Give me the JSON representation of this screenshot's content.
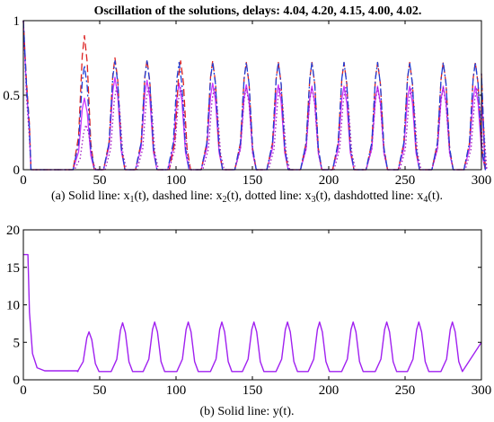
{
  "chart_data": [
    {
      "type": "line",
      "title": "Oscillation of the solutions, delays: 4.04, 4.20, 4.15, 4.00, 4.02.",
      "caption": {
        "prefix": "(a) Solid line: x",
        "sub1": "1",
        "mid1": "(t), dashed line: x",
        "sub2": "2",
        "mid2": "(t), dotted line: x",
        "sub3": "3",
        "mid3": "(t), dashdotted line: x",
        "sub4": "4",
        "suffix": "(t)."
      },
      "xlim": [
        0,
        300
      ],
      "ylim": [
        0,
        1
      ],
      "xticks": [
        "0",
        "50",
        "100",
        "150",
        "200",
        "250",
        "300"
      ],
      "yticks": [
        "0",
        "0.5",
        "1"
      ],
      "grid": false,
      "series": [
        {
          "style": "solid",
          "color": "#cc33ff",
          "initial": [
            [
              0,
              1.0
            ],
            [
              2,
              0.55
            ],
            [
              4,
              0.25
            ],
            [
              5,
              0.0
            ]
          ],
          "first_peak": [
            40,
            0.48
          ],
          "peaks": [
            [
              60,
              0.62
            ],
            [
              81,
              0.6
            ],
            [
              102,
              0.58
            ],
            [
              124,
              0.58
            ],
            [
              146,
              0.57
            ],
            [
              167,
              0.57
            ],
            [
              189,
              0.56
            ],
            [
              210,
              0.56
            ],
            [
              232,
              0.56
            ],
            [
              253,
              0.56
            ],
            [
              275,
              0.56
            ],
            [
              296,
              0.56
            ]
          ]
        },
        {
          "style": "dashed",
          "color": "#dd2222",
          "initial": [
            [
              0,
              1.0
            ],
            [
              2,
              0.6
            ],
            [
              4,
              0.3
            ],
            [
              5,
              0.0
            ]
          ],
          "first_peak": [
            40,
            0.9
          ],
          "peaks": [
            [
              60,
              0.75
            ],
            [
              81,
              0.74
            ],
            [
              103,
              0.73
            ],
            [
              124,
              0.73
            ],
            [
              146,
              0.72
            ],
            [
              167,
              0.72
            ],
            [
              189,
              0.72
            ],
            [
              210,
              0.72
            ],
            [
              232,
              0.72
            ],
            [
              253,
              0.72
            ],
            [
              275,
              0.72
            ],
            [
              296,
              0.72
            ]
          ]
        },
        {
          "style": "dotted",
          "color": "#a020c0",
          "initial": [
            [
              0,
              1.0
            ],
            [
              2,
              0.5
            ],
            [
              4,
              0.2
            ],
            [
              5,
              0.0
            ]
          ],
          "first_peak": [
            41,
            0.3
          ],
          "peaks": [
            [
              61,
              0.55
            ],
            [
              82,
              0.56
            ],
            [
              103,
              0.55
            ],
            [
              125,
              0.55
            ],
            [
              146,
              0.55
            ],
            [
              168,
              0.55
            ],
            [
              189,
              0.55
            ],
            [
              211,
              0.55
            ],
            [
              232,
              0.55
            ],
            [
              254,
              0.55
            ],
            [
              275,
              0.55
            ],
            [
              297,
              0.55
            ]
          ]
        },
        {
          "style": "dashdot",
          "color": "#1f3fd6",
          "initial": [
            [
              0,
              1.0
            ],
            [
              2,
              0.58
            ],
            [
              4,
              0.28
            ],
            [
              5,
              0.0
            ]
          ],
          "first_peak": [
            40,
            0.7
          ],
          "peaks": [
            [
              60,
              0.73
            ],
            [
              81,
              0.73
            ],
            [
              102,
              0.72
            ],
            [
              124,
              0.72
            ],
            [
              146,
              0.72
            ],
            [
              167,
              0.72
            ],
            [
              189,
              0.72
            ],
            [
              210,
              0.72
            ],
            [
              232,
              0.72
            ],
            [
              253,
              0.72
            ],
            [
              275,
              0.72
            ],
            [
              296,
              0.72
            ]
          ]
        }
      ]
    },
    {
      "type": "line",
      "caption": "(b) Solid line: y(t).",
      "xlim": [
        0,
        300
      ],
      "ylim": [
        0,
        20
      ],
      "xticks": [
        "0",
        "50",
        "100",
        "150",
        "200",
        "250",
        "300"
      ],
      "yticks": [
        "0",
        "5",
        "10",
        "15",
        "20"
      ],
      "grid": false,
      "series": [
        {
          "style": "solid",
          "color": "#a020f0",
          "initial": [
            [
              0,
              16.7
            ],
            [
              3,
              16.7
            ],
            [
              4,
              9.0
            ],
            [
              6,
              3.5
            ],
            [
              9,
              1.6
            ],
            [
              14,
              1.2
            ],
            [
              36,
              1.2
            ]
          ],
          "baseline": 1.1,
          "first_peak": [
            43,
            6.4
          ],
          "peaks": [
            [
              65,
              7.6
            ],
            [
              86,
              7.7
            ],
            [
              108,
              7.7
            ],
            [
              130,
              7.7
            ],
            [
              151,
              7.7
            ],
            [
              173,
              7.7
            ],
            [
              194,
              7.7
            ],
            [
              216,
              7.7
            ],
            [
              238,
              7.7
            ],
            [
              259,
              7.7
            ],
            [
              281,
              7.7
            ]
          ],
          "end": [
            [
              300,
              5.0
            ]
          ]
        }
      ]
    }
  ]
}
